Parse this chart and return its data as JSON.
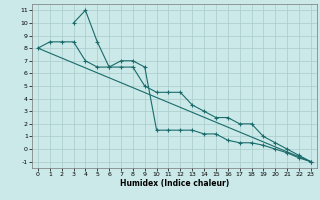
{
  "xlabel": "Humidex (Indice chaleur)",
  "xlim": [
    -0.5,
    23.5
  ],
  "ylim": [
    -1.5,
    11.5
  ],
  "xticks": [
    0,
    1,
    2,
    3,
    4,
    5,
    6,
    7,
    8,
    9,
    10,
    11,
    12,
    13,
    14,
    15,
    16,
    17,
    18,
    19,
    20,
    21,
    22,
    23
  ],
  "yticks": [
    -1,
    0,
    1,
    2,
    3,
    4,
    5,
    6,
    7,
    8,
    9,
    10,
    11
  ],
  "bg_color": "#cce9e9",
  "grid_color": "#aacccc",
  "line_color": "#1a6b6b",
  "line1_x": [
    0,
    23
  ],
  "line1_y": [
    8,
    -1
  ],
  "line2_x": [
    0,
    1,
    2,
    3,
    4,
    5,
    6,
    7,
    8,
    9,
    10,
    11,
    12,
    13,
    14,
    15,
    16,
    17,
    18,
    19,
    20,
    21,
    22,
    23
  ],
  "line2_y": [
    8.0,
    8.5,
    8.5,
    8.5,
    7.0,
    6.5,
    6.5,
    7.0,
    7.0,
    6.5,
    1.5,
    1.5,
    1.5,
    1.5,
    1.2,
    1.2,
    0.7,
    0.5,
    0.5,
    0.3,
    0.0,
    -0.3,
    -0.7,
    -1.0
  ],
  "line3_x": [
    3,
    4,
    5,
    6,
    7,
    8,
    9,
    10,
    11,
    12,
    13,
    14,
    15,
    16,
    17,
    18,
    19,
    20,
    21,
    22,
    23
  ],
  "line3_y": [
    10.0,
    11.0,
    8.5,
    6.5,
    6.5,
    6.5,
    5.0,
    4.5,
    4.5,
    4.5,
    3.5,
    3.0,
    2.5,
    2.5,
    2.0,
    2.0,
    1.0,
    0.5,
    0.0,
    -0.5,
    -1.0
  ]
}
